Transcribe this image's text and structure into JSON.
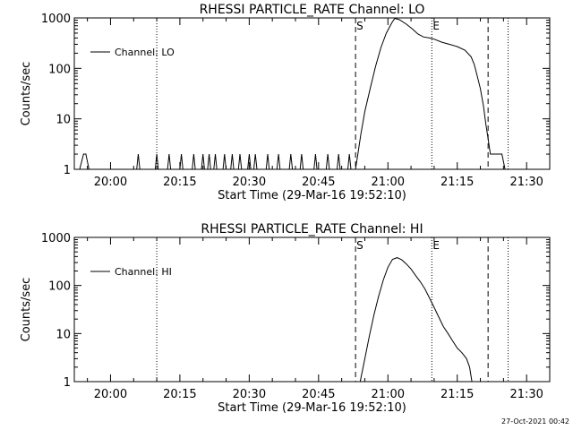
{
  "footer_timestamp": "27-Oct-2021 00:42",
  "chart_data": [
    {
      "type": "line",
      "title": "RHESSI PARTICLE_RATE Channel: LO",
      "xlabel": "Start Time (29-Mar-16 19:52:10)",
      "ylabel": "Counts/sec",
      "y_scale": "log",
      "xlim": [
        "19:52:10",
        "21:35:00"
      ],
      "ylim": [
        1,
        1000
      ],
      "x_ticks": [
        "20:00",
        "20:15",
        "20:30",
        "20:45",
        "21:00",
        "21:15",
        "21:30"
      ],
      "y_ticks": [
        "1",
        "10",
        "100",
        "1000"
      ],
      "legend": {
        "position": "top-left",
        "entries": [
          "Channel: LO"
        ]
      },
      "markers": [
        {
          "label": "S",
          "time": "20:53:00",
          "style": "dashed"
        },
        {
          "label": "E",
          "time": "21:09:30",
          "style": "dotted"
        },
        {
          "label": "",
          "time": "20:10:00",
          "style": "dotted"
        },
        {
          "label": "",
          "time": "21:21:40",
          "style": "dashed"
        },
        {
          "label": "",
          "time": "21:26:00",
          "style": "dotted"
        }
      ],
      "series": [
        {
          "name": "Channel: LO",
          "x": [
            "19:53:20",
            "19:54:10",
            "19:54:40",
            "19:55:20",
            "20:05:40",
            "20:06:00",
            "20:06:20",
            "20:09:40",
            "20:10:00",
            "20:10:20",
            "20:12:20",
            "20:12:40",
            "20:13:00",
            "20:15:00",
            "20:15:20",
            "20:15:40",
            "20:17:40",
            "20:18:00",
            "20:18:20",
            "20:19:40",
            "20:20:00",
            "20:20:20",
            "20:21:00",
            "20:21:20",
            "20:21:40",
            "20:22:20",
            "20:22:40",
            "20:23:00",
            "20:24:20",
            "20:24:40",
            "20:25:00",
            "20:26:00",
            "20:26:20",
            "20:26:40",
            "20:27:40",
            "20:28:00",
            "20:28:20",
            "20:29:40",
            "20:30:00",
            "20:30:20",
            "20:31:00",
            "20:31:20",
            "20:31:40",
            "20:33:40",
            "20:34:00",
            "20:34:20",
            "20:36:00",
            "20:36:20",
            "20:36:40",
            "20:38:40",
            "20:39:00",
            "20:39:20",
            "20:41:00",
            "20:41:20",
            "20:41:40",
            "20:44:00",
            "20:44:20",
            "20:44:40",
            "20:46:40",
            "20:47:00",
            "20:47:20",
            "20:49:00",
            "20:49:20",
            "20:49:40",
            "20:51:20",
            "20:51:40",
            "20:52:00",
            "20:53:00",
            "20:53:30",
            "20:54:10",
            "20:55:00",
            "20:56:10",
            "20:57:20",
            "20:58:30",
            "20:59:40",
            "21:00:50",
            "21:01:30",
            "21:02:30",
            "21:04:00",
            "21:05:20",
            "21:06:30",
            "21:07:40",
            "21:09:00",
            "21:10:00",
            "21:11:40",
            "21:13:20",
            "21:15:00",
            "21:16:40",
            "21:18:00",
            "21:18:40",
            "21:19:20",
            "21:20:00",
            "21:20:40",
            "21:21:10",
            "21:21:40",
            "21:22:10",
            "21:24:00",
            "21:24:40",
            "21:25:20",
            "21:26:00"
          ],
          "y": [
            1,
            2,
            2,
            1,
            1,
            2,
            1,
            1,
            2,
            1,
            1,
            2,
            1,
            1,
            2,
            1,
            1,
            2,
            1,
            1,
            2,
            1,
            1,
            2,
            1,
            1,
            2,
            1,
            1,
            2,
            1,
            1,
            2,
            1,
            1,
            2,
            1,
            1,
            2,
            1,
            1,
            2,
            1,
            1,
            2,
            1,
            1,
            2,
            1,
            1,
            2,
            1,
            1,
            2,
            1,
            1,
            2,
            1,
            1,
            2,
            1,
            1,
            2,
            1,
            1,
            2,
            1,
            1,
            2,
            5,
            14,
            40,
            110,
            260,
            500,
            800,
            980,
            920,
            750,
            600,
            480,
            420,
            400,
            380,
            330,
            300,
            270,
            230,
            170,
            120,
            70,
            40,
            18,
            8,
            4,
            2,
            2,
            2,
            1,
            1
          ]
        }
      ]
    },
    {
      "type": "line",
      "title": "RHESSI PARTICLE_RATE Channel: HI",
      "xlabel": "Start Time (29-Mar-16 19:52:10)",
      "ylabel": "Counts/sec",
      "y_scale": "log",
      "xlim": [
        "19:52:10",
        "21:35:00"
      ],
      "ylim": [
        1,
        1000
      ],
      "x_ticks": [
        "20:00",
        "20:15",
        "20:30",
        "20:45",
        "21:00",
        "21:15",
        "21:30"
      ],
      "y_ticks": [
        "1",
        "10",
        "100",
        "1000"
      ],
      "legend": {
        "position": "top-left",
        "entries": [
          "Channel: HI"
        ]
      },
      "markers": [
        {
          "label": "S",
          "time": "20:53:00",
          "style": "dashed"
        },
        {
          "label": "E",
          "time": "21:09:30",
          "style": "dotted"
        },
        {
          "label": "",
          "time": "20:10:00",
          "style": "dotted"
        },
        {
          "label": "",
          "time": "21:21:40",
          "style": "dashed"
        },
        {
          "label": "",
          "time": "21:26:00",
          "style": "dotted"
        }
      ],
      "series": [
        {
          "name": "Channel: HI",
          "x": [
            "20:54:00",
            "20:55:00",
            "20:56:00",
            "20:57:00",
            "20:58:00",
            "20:59:00",
            "21:00:00",
            "21:01:00",
            "21:02:00",
            "21:03:00",
            "21:04:00",
            "21:05:00",
            "21:06:00",
            "21:07:00",
            "21:08:00",
            "21:09:00",
            "21:10:00",
            "21:11:00",
            "21:12:00",
            "21:13:00",
            "21:14:00",
            "21:15:00",
            "21:16:00",
            "21:17:00",
            "21:17:40",
            "21:18:10"
          ],
          "y": [
            1,
            3,
            9,
            25,
            60,
            130,
            240,
            350,
            380,
            340,
            280,
            220,
            160,
            120,
            85,
            55,
            35,
            22,
            14,
            10,
            7,
            5,
            4,
            3,
            2,
            1
          ]
        }
      ]
    }
  ]
}
